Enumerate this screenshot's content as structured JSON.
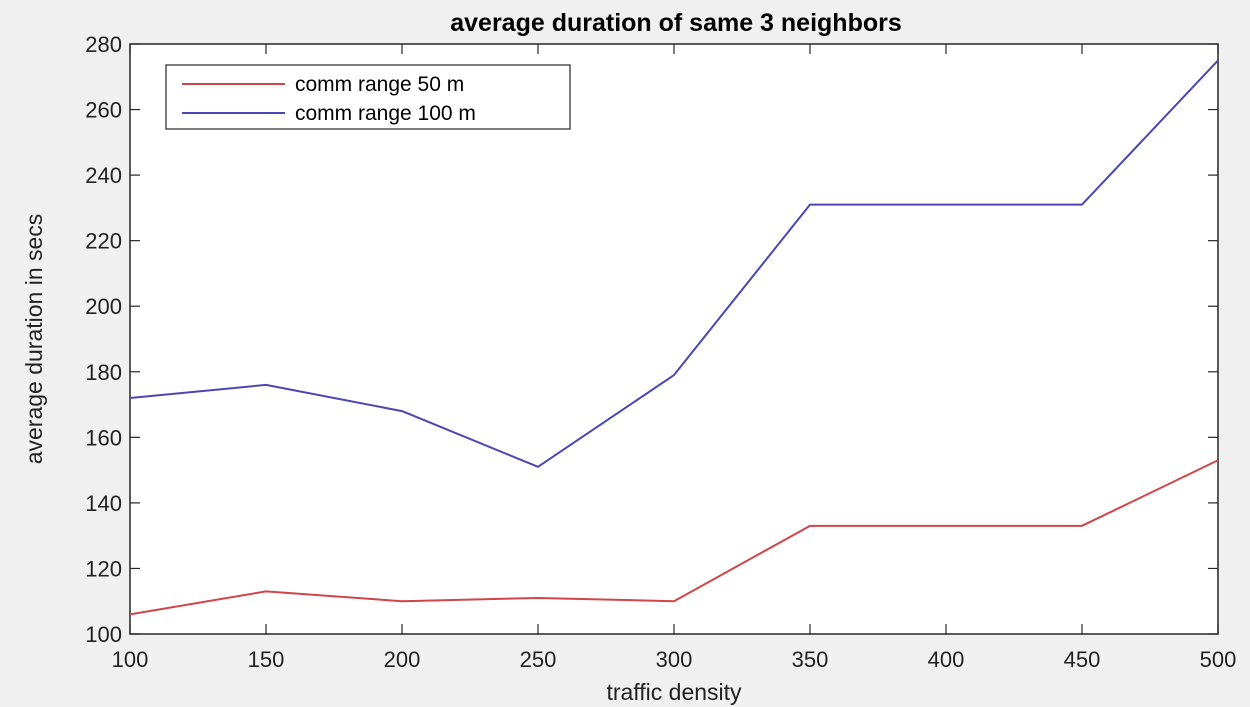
{
  "chart_data": {
    "type": "line",
    "title": "average duration of same 3 neighbors",
    "xlabel": "traffic density",
    "ylabel": "average duration in secs",
    "xlim": [
      100,
      500
    ],
    "ylim": [
      100,
      280
    ],
    "x_ticks": [
      100,
      150,
      200,
      250,
      300,
      350,
      400,
      450,
      500
    ],
    "y_ticks": [
      100,
      120,
      140,
      160,
      180,
      200,
      220,
      240,
      260,
      280
    ],
    "x": [
      100,
      150,
      200,
      250,
      300,
      350,
      400,
      450,
      500
    ],
    "series": [
      {
        "name": "comm range 50 m",
        "color": "#d0454a",
        "values": [
          106,
          113,
          110,
          111,
          110,
          133,
          133,
          133,
          153
        ]
      },
      {
        "name": "comm range 100 m",
        "color": "#4a47b4",
        "values": [
          172,
          176,
          168,
          151,
          179,
          231,
          231,
          231,
          275
        ]
      }
    ],
    "legend_position": "top-left",
    "grid": false
  }
}
